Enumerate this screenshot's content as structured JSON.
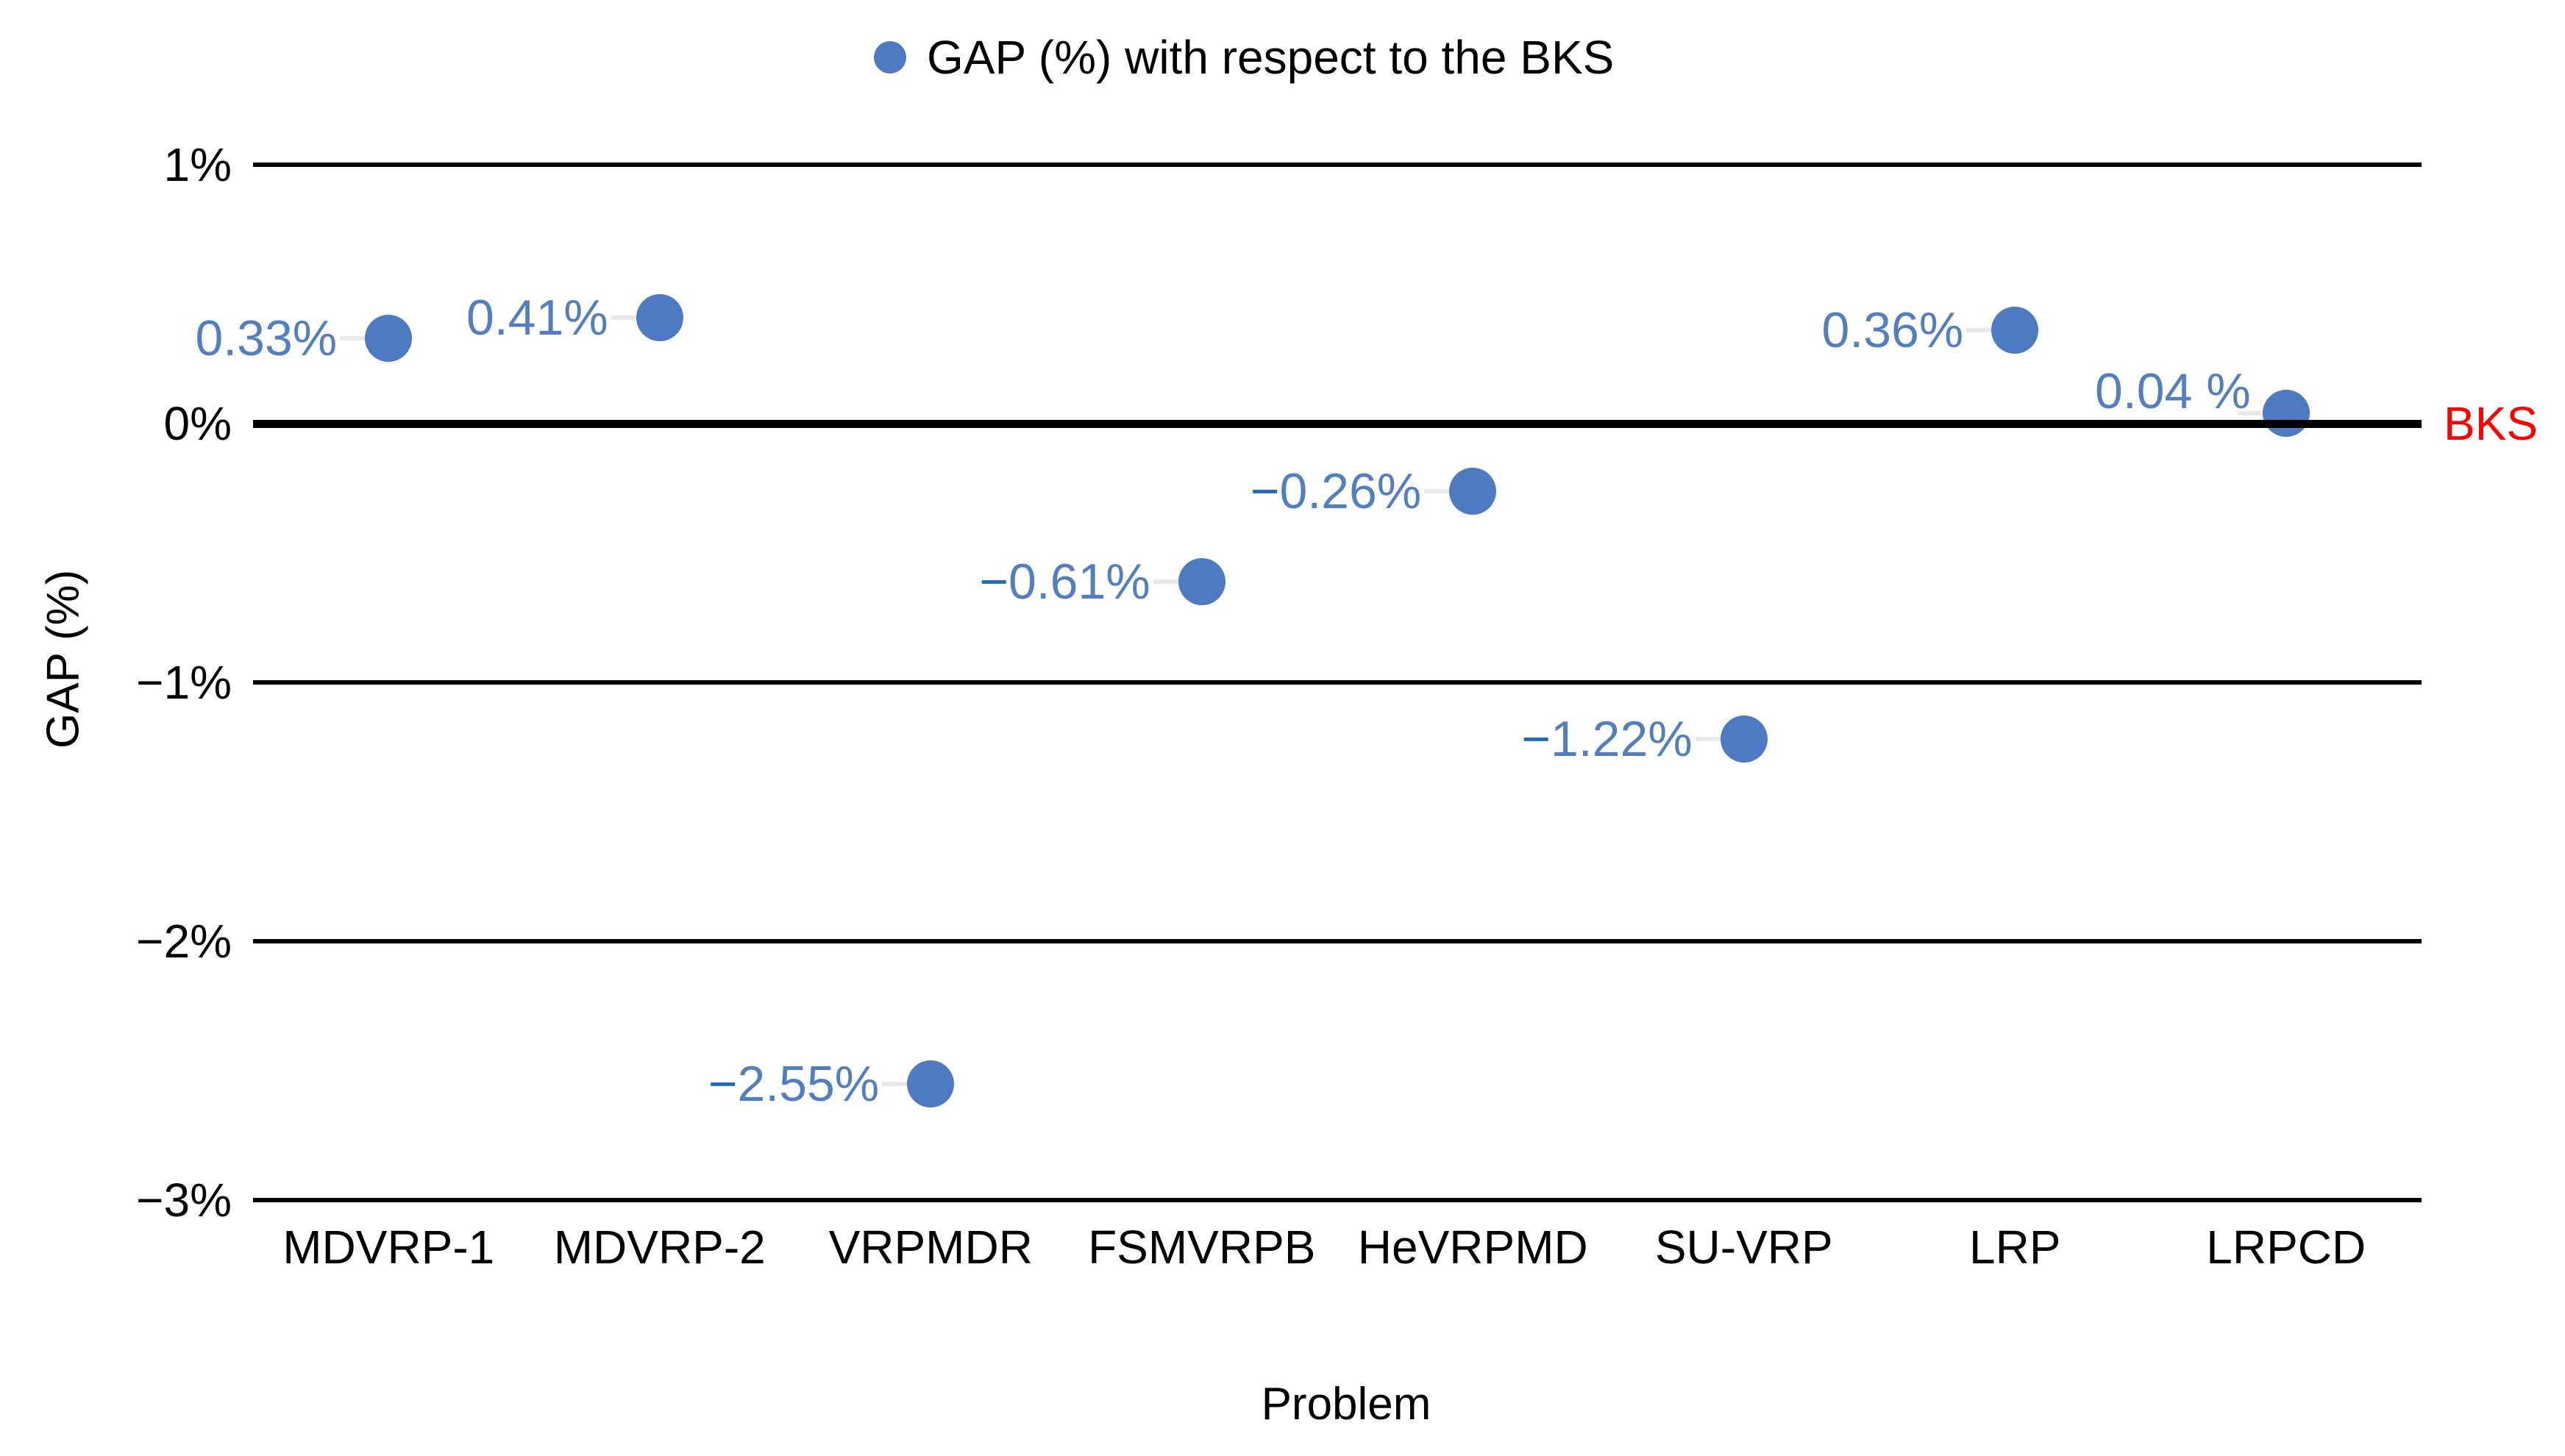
{
  "legend": {
    "label": "GAP (%) with respect to the BKS"
  },
  "axes": {
    "y_label": "GAP (%)",
    "x_label": "Problem",
    "bks_label": "BKS"
  },
  "colors": {
    "point": "#4d7ac0",
    "point_label": "#547fbe",
    "point_label_minus": "#1e6cb7",
    "leader": "#e9e9e9",
    "grid": "#000000",
    "bks_label": "#ff0000",
    "text": "#000000"
  },
  "chart_data": {
    "type": "scatter",
    "title": "",
    "legend": [
      "GAP (%) with respect to the BKS"
    ],
    "legend_position": "top",
    "categories": [
      "MDVRP-1",
      "MDVRP-2",
      "VRPMDR",
      "FSMVRPB",
      "HeVRPMD",
      "SU-VRP",
      "LRP",
      "LRPCD"
    ],
    "values": [
      0.33,
      0.41,
      -2.55,
      -0.61,
      -0.26,
      -1.22,
      0.36,
      0.04
    ],
    "point_labels": [
      "0.33%",
      "0.41%",
      "−2.55%",
      "−0.61%",
      "−0.26%",
      "−1.22%",
      "0.36%",
      "0.04 %"
    ],
    "xlabel": "Problem",
    "ylabel": "GAP (%)",
    "ylim": [
      -3,
      1
    ],
    "y_ticks": [
      {
        "label": "1%",
        "value": 1
      },
      {
        "label": "0%",
        "value": 0,
        "ref": true
      },
      {
        "label": "−1%",
        "value": -1
      },
      {
        "label": "−2%",
        "value": -2
      },
      {
        "label": "−3%",
        "value": -3
      }
    ],
    "ref_line": {
      "value": 0,
      "label": "BKS"
    },
    "grid": true
  }
}
